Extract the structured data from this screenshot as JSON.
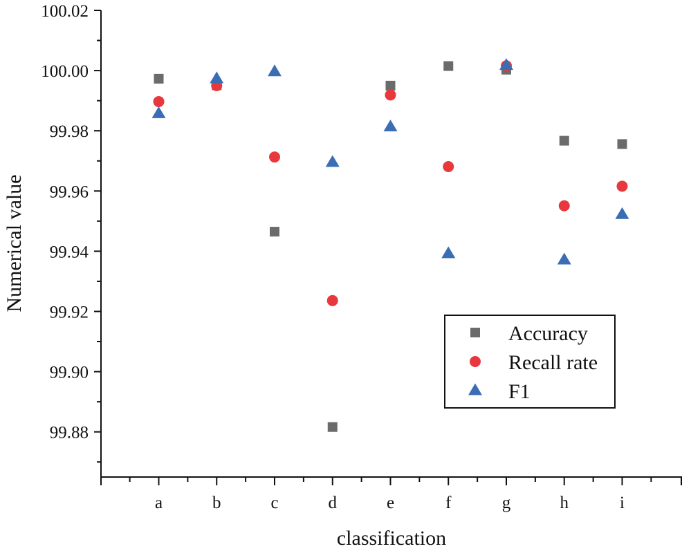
{
  "chart_data": {
    "type": "scatter",
    "title": "",
    "xlabel": "classification",
    "ylabel": "Numerical value",
    "categories": [
      "a",
      "b",
      "c",
      "d",
      "e",
      "f",
      "g",
      "h",
      "i"
    ],
    "ylim": [
      99.865,
      100.02
    ],
    "yticks": [
      "99.88",
      "99.90",
      "99.92",
      "99.94",
      "99.96",
      "99.98",
      "100.00",
      "100.02"
    ],
    "grid": false,
    "legend_position": "bottom-right",
    "series": [
      {
        "name": "Accuracy",
        "marker": "square",
        "color": "#6b6b6b",
        "values": [
          99.9973,
          99.9951,
          99.9465,
          99.8816,
          99.995,
          100.0015,
          100.0003,
          99.9767,
          99.9756
        ]
      },
      {
        "name": "Recall rate",
        "marker": "circle",
        "color": "#e8383d",
        "values": [
          99.9897,
          99.995,
          99.9713,
          99.9236,
          99.9919,
          99.9681,
          100.0016,
          99.9551,
          99.9616
        ]
      },
      {
        "name": "F1",
        "marker": "triangle",
        "color": "#3b6db5",
        "values": [
          99.9857,
          99.9973,
          99.9996,
          99.9695,
          99.9813,
          99.9392,
          100.0017,
          99.9371,
          99.9522
        ]
      }
    ]
  }
}
